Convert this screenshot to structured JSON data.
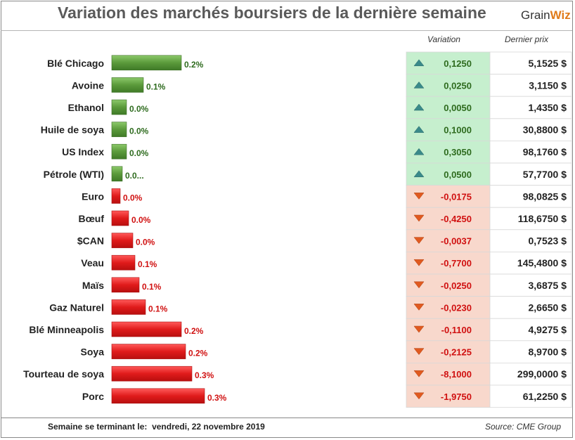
{
  "header": {
    "title": "Variation des marchés boursiers de la dernière semaine",
    "logo_text": "Grain",
    "logo_mark": "Wiz"
  },
  "table_headers": {
    "variation": "Variation",
    "last_price": "Dernier prix"
  },
  "footer": {
    "week_label": "Semaine se terminant le:",
    "week_date": "vendredi, 22 novembre 2019",
    "source": "Source: CME Group"
  },
  "colors": {
    "positive_bar": "#5b9a3b",
    "negative_bar": "#e01b1b",
    "positive_text": "#2e6b1e",
    "negative_text": "#d01010",
    "positive_cell": "#c6efce",
    "negative_cell": "#f8d8cc",
    "up_arrow": "#3a8a8a",
    "down_arrow": "#e05a20"
  },
  "chart_data": {
    "type": "bar",
    "orientation": "horizontal",
    "categories": [
      "Blé Chicago",
      "Avoine",
      "Ethanol",
      "Huile de soya",
      "US Index",
      "Pétrole (WTI)",
      "Euro",
      "Bœuf",
      "$CAN",
      "Veau",
      "Maïs",
      "Gaz Naturel",
      "Blé Minneapolis",
      "Soya",
      "Tourteau de soya",
      "Porc"
    ],
    "values": [
      0.2,
      0.1,
      0.0,
      0.0,
      0.0,
      0.0,
      0.0,
      0.0,
      0.0,
      0.1,
      0.1,
      0.1,
      0.2,
      0.2,
      0.3,
      0.3
    ],
    "bar_labels": [
      "0.2%",
      "0.1%",
      "0.0%",
      "0.0%",
      "0.0%",
      "0.0...",
      "0.0%",
      "0.0%",
      "0.0%",
      "0.1%",
      "0.1%",
      "0.1%",
      "0.2%",
      "0.2%",
      "0.3%",
      "0.3%"
    ],
    "direction": [
      "up",
      "up",
      "up",
      "up",
      "up",
      "up",
      "down",
      "down",
      "down",
      "down",
      "down",
      "down",
      "down",
      "down",
      "down",
      "down"
    ],
    "variation": [
      "0,1250",
      "0,0250",
      "0,0050",
      "0,1000",
      "0,3050",
      "0,0500",
      "-0,0175",
      "-0,4250",
      "-0,0037",
      "-0,7700",
      "-0,0250",
      "-0,0230",
      "-0,1100",
      "-0,2125",
      "-8,1000",
      "-1,9750"
    ],
    "last_price": [
      "5,1525 $",
      "3,1150 $",
      "1,4350 $",
      "30,8800 $",
      "98,1760 $",
      "57,7700 $",
      "98,0825 $",
      "118,6750 $",
      "0,7523 $",
      "145,4800 $",
      "3,6875 $",
      "2,6650 $",
      "4,9275 $",
      "8,9700 $",
      "299,0000 $",
      "61,2250 $"
    ],
    "bar_lengths_relative": [
      0.33,
      0.15,
      0.07,
      0.07,
      0.07,
      0.05,
      0.04,
      0.08,
      0.1,
      0.11,
      0.13,
      0.16,
      0.33,
      0.35,
      0.38,
      0.44
    ],
    "xlabel": "",
    "ylabel": ""
  }
}
